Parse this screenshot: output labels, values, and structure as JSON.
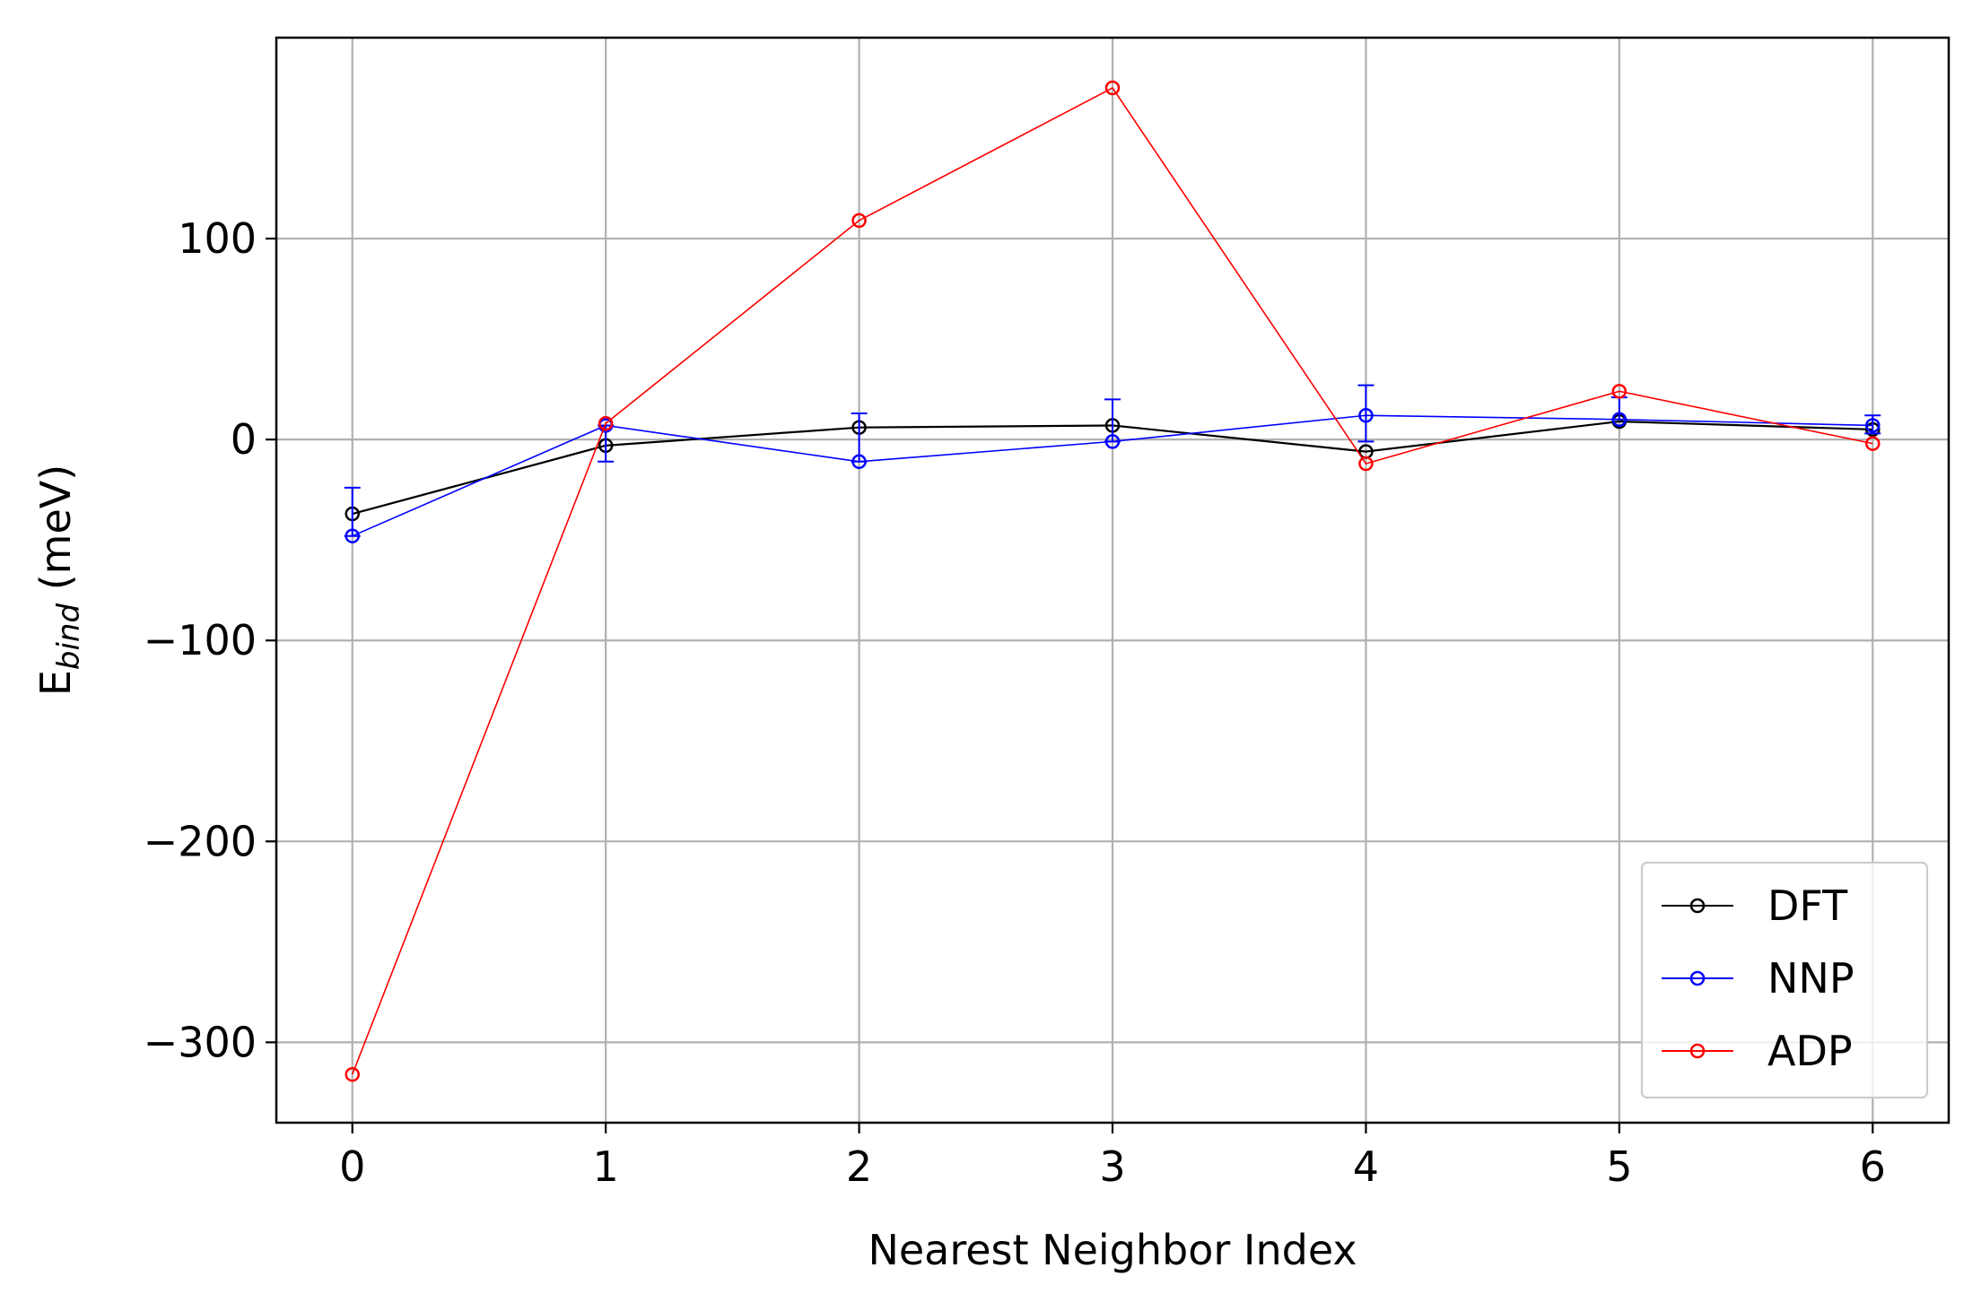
{
  "chart_data": {
    "type": "line",
    "title": "",
    "xlabel": "Nearest Neighbor Index",
    "ylabel_main": "E",
    "ylabel_sub": "bind",
    "ylabel_unit": " (meV)",
    "xlim": [
      -0.3,
      6.3
    ],
    "ylim": [
      -340,
      200
    ],
    "xticks": [
      0,
      1,
      2,
      3,
      4,
      5,
      6
    ],
    "yticks": [
      -300,
      -200,
      -100,
      0,
      100
    ],
    "ytick_labels": [
      "−300",
      "−200",
      "−100",
      "0",
      "100"
    ],
    "grid": true,
    "legend_position": "lower-right",
    "x": [
      0,
      1,
      2,
      3,
      4,
      5,
      6
    ],
    "series": [
      {
        "name": "DFT",
        "color": "#000000",
        "marker": "open-circle",
        "values": [
          -37,
          -3,
          6,
          7,
          -6,
          9,
          5
        ]
      },
      {
        "name": "NNP",
        "color": "#0000ff",
        "marker": "open-circle",
        "values": [
          -48,
          7,
          -11,
          -1,
          12,
          10,
          7
        ],
        "error_bars": [
          [
            -48,
            -24
          ],
          [
            -11,
            7
          ],
          [
            -11,
            13
          ],
          [
            -1,
            20
          ],
          [
            -1,
            27
          ],
          [
            10,
            21
          ],
          [
            3,
            12
          ]
        ]
      },
      {
        "name": "ADP",
        "color": "#ff0000",
        "marker": "open-circle",
        "values": [
          -316,
          8,
          109,
          175,
          -12,
          24,
          -2
        ]
      }
    ]
  }
}
